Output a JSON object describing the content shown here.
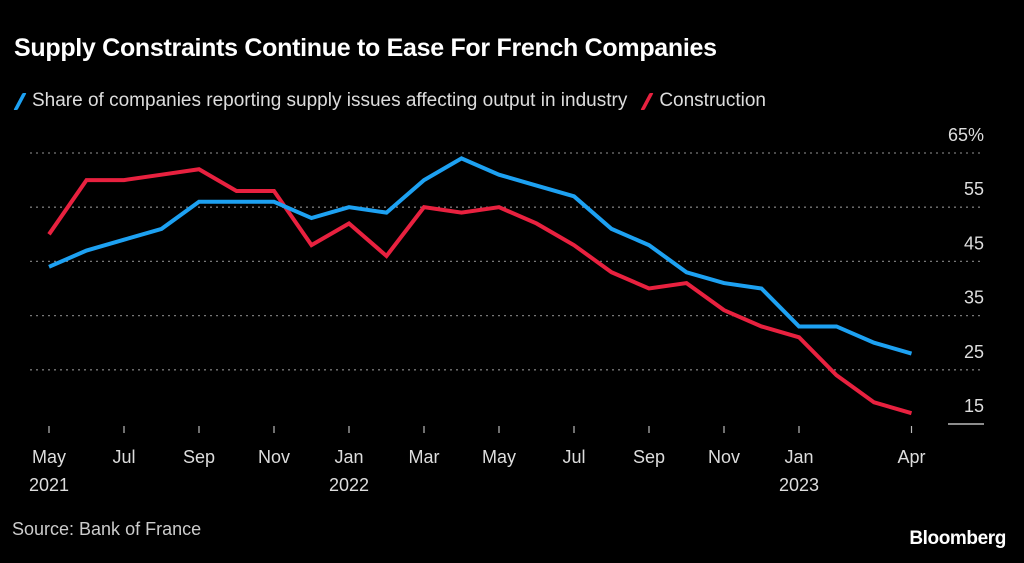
{
  "chart_data": {
    "type": "line",
    "title": "Supply Constraints Continue to Ease For French Companies",
    "xlabel": "",
    "ylabel": "",
    "y_unit": "%",
    "ylim": [
      15,
      65
    ],
    "yticks": [
      15,
      25,
      35,
      45,
      55,
      65
    ],
    "ytick_labels": [
      "15",
      "25",
      "35",
      "45",
      "55",
      "65%"
    ],
    "y_axis_side": "right",
    "grid": "horizontal dotted",
    "legend_position": "top-left",
    "x": [
      "2021-05",
      "2021-06",
      "2021-07",
      "2021-08",
      "2021-09",
      "2021-10",
      "2021-11",
      "2021-12",
      "2022-01",
      "2022-02",
      "2022-03",
      "2022-04",
      "2022-05",
      "2022-06",
      "2022-07",
      "2022-08",
      "2022-09",
      "2022-10",
      "2022-11",
      "2022-12",
      "2023-01",
      "2023-02",
      "2023-03",
      "2023-04"
    ],
    "xticks": [
      {
        "index": 0,
        "label": "May",
        "sub": "2021"
      },
      {
        "index": 2,
        "label": "Jul",
        "sub": ""
      },
      {
        "index": 4,
        "label": "Sep",
        "sub": ""
      },
      {
        "index": 6,
        "label": "Nov",
        "sub": ""
      },
      {
        "index": 8,
        "label": "Jan",
        "sub": "2022"
      },
      {
        "index": 10,
        "label": "Mar",
        "sub": ""
      },
      {
        "index": 12,
        "label": "May",
        "sub": ""
      },
      {
        "index": 14,
        "label": "Jul",
        "sub": ""
      },
      {
        "index": 16,
        "label": "Sep",
        "sub": ""
      },
      {
        "index": 18,
        "label": "Nov",
        "sub": ""
      },
      {
        "index": 20,
        "label": "Jan",
        "sub": "2023"
      },
      {
        "index": 23,
        "label": "Apr",
        "sub": ""
      }
    ],
    "series": [
      {
        "name": "Share of companies reporting supply issues affecting output in industry",
        "color": "#1da1f2",
        "values": [
          44,
          47,
          49,
          51,
          56,
          56,
          56,
          53,
          55,
          54,
          60,
          64,
          61,
          59,
          57,
          51,
          48,
          43,
          41,
          40,
          33,
          33,
          30,
          28
        ]
      },
      {
        "name": "Construction",
        "color": "#e8213f",
        "values": [
          50,
          60,
          60,
          61,
          62,
          58,
          58,
          48,
          52,
          46,
          55,
          54,
          55,
          52,
          48,
          43,
          40,
          41,
          36,
          33,
          31,
          24,
          19,
          17
        ]
      }
    ]
  },
  "source": "Source: Bank of France",
  "brand": "Bloomberg"
}
